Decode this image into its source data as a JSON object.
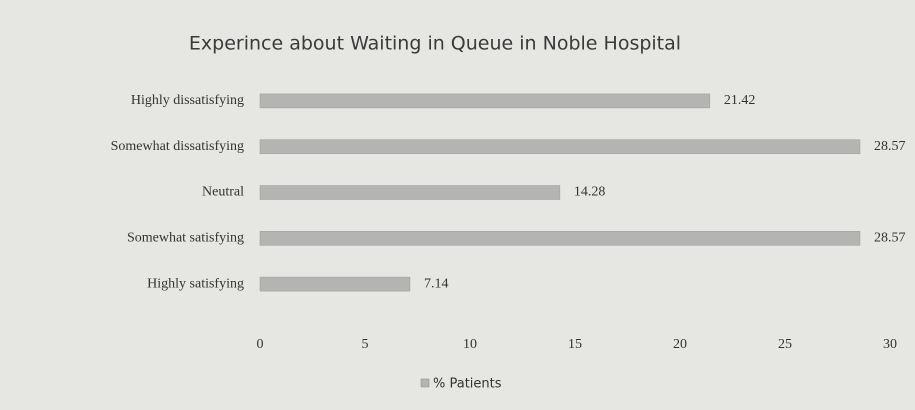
{
  "chart_data": {
    "type": "bar",
    "orientation": "horizontal",
    "title": "Experince about Waiting in Queue in Noble Hospital",
    "categories": [
      "Highly dissatisfying",
      "Somewhat dissatisfying",
      "Neutral",
      "Somewhat satisfying",
      "Highly satisfying"
    ],
    "series": [
      {
        "name": "% Patients",
        "color": "#b4b4b2",
        "values": [
          21.42,
          28.57,
          14.28,
          28.57,
          7.14
        ]
      }
    ],
    "xlim": [
      0,
      30
    ],
    "xticks": [
      0,
      5,
      10,
      15,
      20,
      25,
      30
    ],
    "grid": false,
    "legend": "bottom"
  }
}
